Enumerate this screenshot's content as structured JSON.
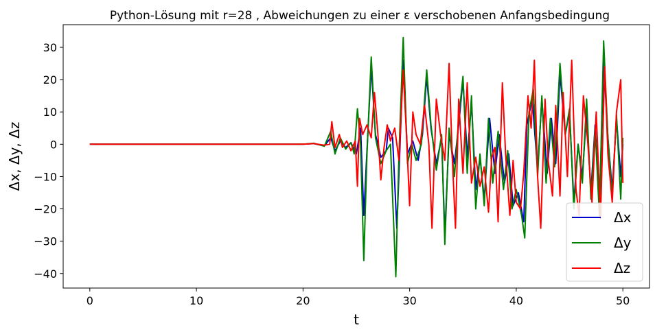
{
  "chart_data": {
    "type": "line",
    "title": "Python-Lösung mit r=28 , Abweichungen zu einer ε verschobenen Anfangsbedingung",
    "xlabel": "t",
    "ylabel": "Δx, Δy, Δz",
    "xlim": [
      -2.5,
      52.5
    ],
    "ylim": [
      -44.5,
      37
    ],
    "xticks": [
      0,
      10,
      20,
      30,
      40,
      50
    ],
    "yticks": [
      -40,
      -30,
      -20,
      -10,
      0,
      10,
      20,
      30
    ],
    "grid": false,
    "legend": "lower-right",
    "series": [
      {
        "name": "Δx",
        "color": "#0000cc",
        "points": [
          [
            0,
            0
          ],
          [
            20,
            0
          ],
          [
            21,
            0.2
          ],
          [
            22,
            -0.5
          ],
          [
            22.6,
            2
          ],
          [
            23,
            -2
          ],
          [
            23.5,
            1
          ],
          [
            24,
            -1
          ],
          [
            24.5,
            0.5
          ],
          [
            25,
            -3
          ],
          [
            25.4,
            5
          ],
          [
            25.7,
            -22
          ],
          [
            26,
            -2
          ],
          [
            26.4,
            24
          ],
          [
            26.8,
            3
          ],
          [
            27.3,
            -4
          ],
          [
            27.8,
            -2
          ],
          [
            28,
            5
          ],
          [
            28.4,
            2
          ],
          [
            28.8,
            -26
          ],
          [
            29.1,
            0
          ],
          [
            29.4,
            26
          ],
          [
            29.8,
            -3
          ],
          [
            30.3,
            1
          ],
          [
            30.8,
            -5
          ],
          [
            31.2,
            3
          ],
          [
            31.6,
            21
          ],
          [
            32,
            5
          ],
          [
            32.5,
            -6
          ],
          [
            33,
            2
          ],
          [
            33.3,
            -28
          ],
          [
            33.7,
            3
          ],
          [
            34.2,
            -6
          ],
          [
            34.6,
            6
          ],
          [
            35,
            20
          ],
          [
            35.4,
            -4
          ],
          [
            35.8,
            13
          ],
          [
            36.2,
            -14
          ],
          [
            36.6,
            -4
          ],
          [
            37,
            -17
          ],
          [
            37.5,
            8
          ],
          [
            38,
            -9
          ],
          [
            38.4,
            3
          ],
          [
            38.9,
            -12
          ],
          [
            39.3,
            -3
          ],
          [
            39.7,
            -19
          ],
          [
            40.2,
            -15
          ],
          [
            40.7,
            -24
          ],
          [
            41,
            6
          ],
          [
            41.5,
            14
          ],
          [
            42,
            -8
          ],
          [
            42.4,
            14
          ],
          [
            42.9,
            -9
          ],
          [
            43.3,
            8
          ],
          [
            43.7,
            -6
          ],
          [
            44.1,
            22
          ],
          [
            44.6,
            3
          ],
          [
            45,
            10
          ],
          [
            45.4,
            -18
          ],
          [
            45.8,
            0
          ],
          [
            46.2,
            -10
          ],
          [
            46.6,
            10
          ],
          [
            47,
            -15
          ],
          [
            47.4,
            6
          ],
          [
            47.8,
            -20
          ],
          [
            48.2,
            26
          ],
          [
            48.6,
            2
          ],
          [
            49,
            -14
          ],
          [
            49.4,
            8
          ],
          [
            49.8,
            -10
          ],
          [
            50,
            0
          ]
        ]
      },
      {
        "name": "Δy",
        "color": "#008000",
        "points": [
          [
            0,
            0
          ],
          [
            20,
            0
          ],
          [
            21,
            0.3
          ],
          [
            22,
            -0.6
          ],
          [
            22.6,
            4
          ],
          [
            23,
            -3
          ],
          [
            23.5,
            2
          ],
          [
            24,
            -1.5
          ],
          [
            24.5,
            0.5
          ],
          [
            24.8,
            -3
          ],
          [
            25.1,
            11
          ],
          [
            25.4,
            0
          ],
          [
            25.7,
            -36
          ],
          [
            26,
            -3
          ],
          [
            26.4,
            27
          ],
          [
            26.8,
            2
          ],
          [
            27.3,
            -6
          ],
          [
            27.8,
            -2
          ],
          [
            28.2,
            0
          ],
          [
            28.7,
            -41
          ],
          [
            29,
            -3
          ],
          [
            29.4,
            33
          ],
          [
            29.8,
            -6
          ],
          [
            30.2,
            0
          ],
          [
            30.6,
            -5
          ],
          [
            31.1,
            0
          ],
          [
            31.6,
            23
          ],
          [
            32,
            6
          ],
          [
            32.5,
            -8
          ],
          [
            33,
            3
          ],
          [
            33.3,
            -31
          ],
          [
            33.7,
            5
          ],
          [
            34.2,
            -10
          ],
          [
            34.6,
            8
          ],
          [
            35,
            21
          ],
          [
            35.4,
            -9
          ],
          [
            35.8,
            15
          ],
          [
            36.2,
            -20
          ],
          [
            36.6,
            -3
          ],
          [
            37,
            -19
          ],
          [
            37.4,
            8
          ],
          [
            37.8,
            -12
          ],
          [
            38.3,
            4
          ],
          [
            38.8,
            -14
          ],
          [
            39.2,
            -2
          ],
          [
            39.6,
            -20
          ],
          [
            40,
            -14
          ],
          [
            40.5,
            -22
          ],
          [
            40.8,
            -29
          ],
          [
            41.2,
            10
          ],
          [
            41.6,
            17
          ],
          [
            42,
            -10
          ],
          [
            42.4,
            15
          ],
          [
            42.8,
            -12
          ],
          [
            43.2,
            8
          ],
          [
            43.6,
            -7
          ],
          [
            44.1,
            25
          ],
          [
            44.6,
            3
          ],
          [
            45,
            11
          ],
          [
            45.4,
            -20
          ],
          [
            45.8,
            0
          ],
          [
            46.2,
            -12
          ],
          [
            46.6,
            14
          ],
          [
            47,
            -17
          ],
          [
            47.4,
            5
          ],
          [
            47.8,
            -22
          ],
          [
            48.2,
            32
          ],
          [
            48.6,
            2
          ],
          [
            49,
            -16
          ],
          [
            49.4,
            9
          ],
          [
            49.8,
            -17
          ],
          [
            50,
            2
          ]
        ]
      },
      {
        "name": "Δz",
        "color": "#ff0000",
        "points": [
          [
            0,
            0
          ],
          [
            20,
            0
          ],
          [
            21,
            0.2
          ],
          [
            22,
            -0.3
          ],
          [
            22.5,
            0
          ],
          [
            22.7,
            7
          ],
          [
            23,
            -1
          ],
          [
            23.4,
            3
          ],
          [
            23.7,
            -1
          ],
          [
            24.1,
            1
          ],
          [
            24.5,
            -2
          ],
          [
            24.9,
            1
          ],
          [
            25.1,
            -13
          ],
          [
            25.3,
            8
          ],
          [
            25.6,
            3
          ],
          [
            26,
            6
          ],
          [
            26.4,
            2
          ],
          [
            26.7,
            16
          ],
          [
            27,
            4
          ],
          [
            27.3,
            -11
          ],
          [
            27.6,
            -1
          ],
          [
            27.9,
            6
          ],
          [
            28.2,
            1
          ],
          [
            28.6,
            5
          ],
          [
            29,
            -5
          ],
          [
            29.4,
            23
          ],
          [
            29.7,
            3
          ],
          [
            30,
            -19
          ],
          [
            30.3,
            10
          ],
          [
            30.6,
            3
          ],
          [
            31,
            0
          ],
          [
            31.4,
            12
          ],
          [
            31.8,
            0
          ],
          [
            32.1,
            -26
          ],
          [
            32.5,
            14
          ],
          [
            32.9,
            3
          ],
          [
            33.3,
            -5
          ],
          [
            33.7,
            25
          ],
          [
            34,
            -4
          ],
          [
            34.3,
            -26
          ],
          [
            34.6,
            14
          ],
          [
            35,
            -9
          ],
          [
            35.4,
            19
          ],
          [
            35.8,
            -12
          ],
          [
            36.2,
            -4
          ],
          [
            36.6,
            -13
          ],
          [
            37,
            -7
          ],
          [
            37.4,
            -21
          ],
          [
            37.7,
            -4
          ],
          [
            38,
            -1
          ],
          [
            38.3,
            -24
          ],
          [
            38.7,
            19
          ],
          [
            39,
            -3
          ],
          [
            39.4,
            -22
          ],
          [
            39.7,
            -5
          ],
          [
            40,
            -18
          ],
          [
            40.4,
            -20
          ],
          [
            40.7,
            -9
          ],
          [
            41.1,
            15
          ],
          [
            41.4,
            5
          ],
          [
            41.7,
            26
          ],
          [
            42,
            -10
          ],
          [
            42.3,
            -26
          ],
          [
            42.7,
            14
          ],
          [
            43,
            -5
          ],
          [
            43.4,
            -16
          ],
          [
            43.7,
            12
          ],
          [
            44.1,
            -16
          ],
          [
            44.4,
            16
          ],
          [
            44.8,
            -10
          ],
          [
            45.2,
            26
          ],
          [
            45.6,
            -14
          ],
          [
            45.9,
            -22
          ],
          [
            46.3,
            15
          ],
          [
            46.7,
            1
          ],
          [
            47.1,
            -18
          ],
          [
            47.5,
            10
          ],
          [
            47.9,
            -23
          ],
          [
            48.3,
            24
          ],
          [
            48.6,
            -3
          ],
          [
            49,
            -18
          ],
          [
            49.4,
            10
          ],
          [
            49.8,
            20
          ],
          [
            50,
            -12
          ]
        ]
      }
    ]
  }
}
